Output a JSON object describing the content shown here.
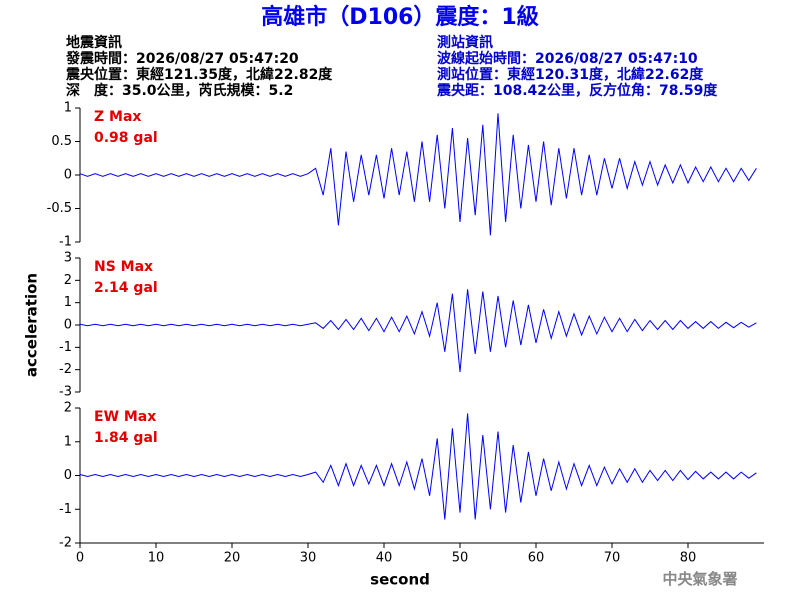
{
  "header": {
    "title": "高雄市（D106）震度：1級",
    "left_info": [
      "地震資訊",
      "發震時間：2026/08/27 05:47:20",
      "震央位置：東經121.35度，北緯22.82度",
      "深　度：35.0公里，芮氏規模：5.2"
    ],
    "right_info": [
      "測站資訊",
      "波線起始時間：2026/08/27 05:47:10",
      "測站位置：東經120.31度，北緯22.62度",
      "震央距：108.42公里，反方位角：78.59度"
    ]
  },
  "chart_data": [
    {
      "type": "line",
      "label": "Z Max",
      "max_label": "0.98 gal",
      "annotation_color": "#e00000",
      "xlim": [
        0,
        90
      ],
      "ylim": [
        -1,
        1
      ],
      "yticks": [
        1,
        0.5,
        0,
        -0.5,
        -1
      ],
      "series": [
        {
          "color": "#0000ff",
          "x": [
            0,
            1,
            2,
            3,
            4,
            5,
            6,
            7,
            8,
            9,
            10,
            11,
            12,
            13,
            14,
            15,
            16,
            17,
            18,
            19,
            20,
            21,
            22,
            23,
            24,
            25,
            26,
            27,
            28,
            29,
            30,
            31,
            32,
            33,
            34,
            35,
            36,
            37,
            38,
            39,
            40,
            41,
            42,
            43,
            44,
            45,
            46,
            47,
            48,
            49,
            50,
            51,
            52,
            53,
            54,
            55,
            56,
            57,
            58,
            59,
            60,
            61,
            62,
            63,
            64,
            65,
            66,
            67,
            68,
            69,
            70,
            71,
            72,
            73,
            74,
            75,
            76,
            77,
            78,
            79,
            80,
            81,
            82,
            83,
            84,
            85,
            86,
            87,
            88,
            89
          ],
          "values": [
            0.02,
            -0.02,
            0.02,
            -0.02,
            0.02,
            -0.02,
            0.02,
            -0.02,
            0.02,
            -0.02,
            0.02,
            -0.02,
            0.02,
            -0.02,
            0.02,
            -0.02,
            0.02,
            -0.02,
            0.02,
            -0.02,
            0.02,
            -0.02,
            0.02,
            -0.02,
            0.02,
            -0.02,
            0.02,
            -0.02,
            0.02,
            -0.02,
            0.02,
            0.1,
            -0.3,
            0.4,
            -0.75,
            0.35,
            -0.4,
            0.3,
            -0.3,
            0.3,
            -0.35,
            0.4,
            -0.3,
            0.35,
            -0.4,
            0.5,
            -0.4,
            0.6,
            -0.5,
            0.7,
            -0.7,
            0.55,
            -0.6,
            0.75,
            -0.9,
            0.92,
            -0.7,
            0.6,
            -0.5,
            0.45,
            -0.4,
            0.5,
            -0.45,
            0.4,
            -0.35,
            0.4,
            -0.3,
            0.3,
            -0.3,
            0.25,
            -0.2,
            0.25,
            -0.2,
            0.2,
            -0.15,
            0.2,
            -0.15,
            0.15,
            -0.12,
            0.15,
            -0.12,
            0.12,
            -0.1,
            0.12,
            -0.1,
            0.1,
            -0.1,
            0.1,
            -0.08,
            0.1
          ]
        }
      ]
    },
    {
      "type": "line",
      "label": "NS Max",
      "max_label": "2.14 gal",
      "annotation_color": "#e00000",
      "ylabel": "acceleration",
      "xlim": [
        0,
        90
      ],
      "ylim": [
        -3,
        3
      ],
      "yticks": [
        3,
        2,
        1,
        0,
        -1,
        -2,
        -3
      ],
      "series": [
        {
          "color": "#0000ff",
          "x": [
            0,
            1,
            2,
            3,
            4,
            5,
            6,
            7,
            8,
            9,
            10,
            11,
            12,
            13,
            14,
            15,
            16,
            17,
            18,
            19,
            20,
            21,
            22,
            23,
            24,
            25,
            26,
            27,
            28,
            29,
            30,
            31,
            32,
            33,
            34,
            35,
            36,
            37,
            38,
            39,
            40,
            41,
            42,
            43,
            44,
            45,
            46,
            47,
            48,
            49,
            50,
            51,
            52,
            53,
            54,
            55,
            56,
            57,
            58,
            59,
            60,
            61,
            62,
            63,
            64,
            65,
            66,
            67,
            68,
            69,
            70,
            71,
            72,
            73,
            74,
            75,
            76,
            77,
            78,
            79,
            80,
            81,
            82,
            83,
            84,
            85,
            86,
            87,
            88,
            89
          ],
          "values": [
            0.03,
            -0.03,
            0.03,
            -0.03,
            0.03,
            -0.03,
            0.03,
            -0.03,
            0.03,
            -0.03,
            0.03,
            -0.03,
            0.03,
            -0.03,
            0.03,
            -0.03,
            0.03,
            -0.03,
            0.03,
            -0.03,
            0.03,
            -0.03,
            0.03,
            -0.03,
            0.03,
            -0.03,
            0.03,
            -0.03,
            0.03,
            -0.03,
            0.03,
            0.1,
            -0.15,
            0.2,
            -0.2,
            0.25,
            -0.2,
            0.3,
            -0.25,
            0.3,
            -0.3,
            0.35,
            -0.3,
            0.4,
            -0.4,
            0.6,
            -0.5,
            1.0,
            -1.2,
            1.4,
            -2.1,
            1.6,
            -1.3,
            1.5,
            -1.2,
            1.3,
            -1.0,
            1.1,
            -0.9,
            0.9,
            -0.8,
            0.7,
            -0.6,
            0.6,
            -0.5,
            0.5,
            -0.45,
            0.4,
            -0.4,
            0.35,
            -0.3,
            0.3,
            -0.3,
            0.25,
            -0.25,
            0.2,
            -0.2,
            0.2,
            -0.2,
            0.2,
            -0.15,
            0.15,
            -0.15,
            0.15,
            -0.15,
            0.12,
            -0.12,
            0.12,
            -0.1,
            0.1
          ]
        }
      ]
    },
    {
      "type": "line",
      "label": "EW Max",
      "max_label": "1.84 gal",
      "annotation_color": "#e00000",
      "xlabel": "second",
      "xlim": [
        0,
        90
      ],
      "xticks": [
        0,
        10,
        20,
        30,
        40,
        50,
        60,
        70,
        80
      ],
      "ylim": [
        -2,
        2
      ],
      "yticks": [
        2,
        1,
        0,
        -1,
        -2
      ],
      "series": [
        {
          "color": "#0000ff",
          "x": [
            0,
            1,
            2,
            3,
            4,
            5,
            6,
            7,
            8,
            9,
            10,
            11,
            12,
            13,
            14,
            15,
            16,
            17,
            18,
            19,
            20,
            21,
            22,
            23,
            24,
            25,
            26,
            27,
            28,
            29,
            30,
            31,
            32,
            33,
            34,
            35,
            36,
            37,
            38,
            39,
            40,
            41,
            42,
            43,
            44,
            45,
            46,
            47,
            48,
            49,
            50,
            51,
            52,
            53,
            54,
            55,
            56,
            57,
            58,
            59,
            60,
            61,
            62,
            63,
            64,
            65,
            66,
            67,
            68,
            69,
            70,
            71,
            72,
            73,
            74,
            75,
            76,
            77,
            78,
            79,
            80,
            81,
            82,
            83,
            84,
            85,
            86,
            87,
            88,
            89
          ],
          "values": [
            0.03,
            -0.03,
            0.03,
            -0.03,
            0.03,
            -0.03,
            0.03,
            -0.03,
            0.03,
            -0.03,
            0.03,
            -0.03,
            0.03,
            -0.03,
            0.03,
            -0.03,
            0.03,
            -0.03,
            0.03,
            -0.03,
            0.03,
            -0.03,
            0.03,
            -0.03,
            0.03,
            -0.03,
            0.03,
            -0.03,
            0.03,
            -0.03,
            0.03,
            0.1,
            -0.2,
            0.3,
            -0.3,
            0.35,
            -0.3,
            0.3,
            -0.25,
            0.3,
            -0.3,
            0.35,
            -0.3,
            0.4,
            -0.4,
            0.5,
            -0.6,
            1.1,
            -1.3,
            1.4,
            -1.1,
            1.84,
            -1.3,
            1.2,
            -1.0,
            1.3,
            -1.1,
            0.9,
            -0.8,
            0.7,
            -0.6,
            0.5,
            -0.45,
            0.4,
            -0.4,
            0.35,
            -0.3,
            0.3,
            -0.3,
            0.25,
            -0.25,
            0.2,
            -0.2,
            0.2,
            -0.2,
            0.15,
            -0.15,
            0.15,
            -0.15,
            0.15,
            -0.12,
            0.12,
            -0.1,
            0.1,
            -0.1,
            0.1,
            -0.1,
            0.1,
            -0.08,
            0.08
          ]
        }
      ]
    }
  ],
  "footer": "中央氣象署"
}
